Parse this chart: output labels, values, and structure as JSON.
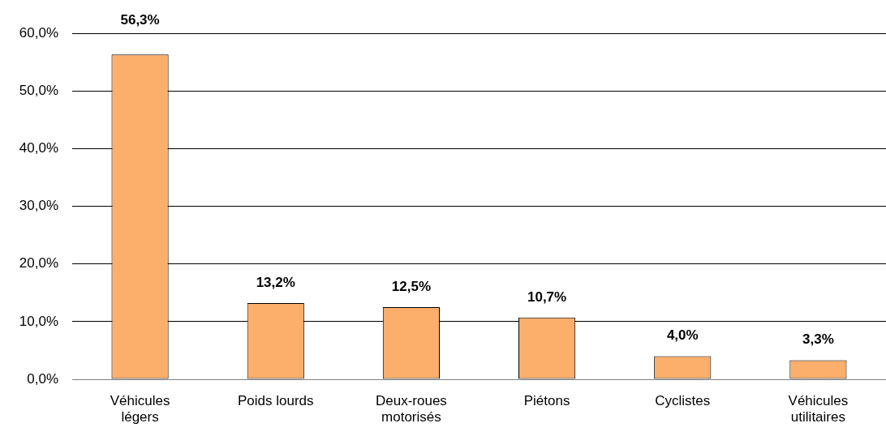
{
  "chart_data": {
    "type": "bar",
    "categories": [
      "Véhicules légers",
      "Poids lourds",
      "Deux-roues motorisés",
      "Piétons",
      "Cyclistes",
      "Véhicules utilitaires"
    ],
    "values": [
      56.3,
      13.2,
      12.5,
      10.7,
      4.0,
      3.3
    ],
    "value_labels": [
      "56,3%",
      "13,2%",
      "12,5%",
      "10,7%",
      "4,0%",
      "3,3%"
    ],
    "color": "#fcae6b",
    "ylim": [
      0,
      60
    ],
    "yticks": [
      {
        "value": 0,
        "label": "0,0%"
      },
      {
        "value": 10,
        "label": "10,0%"
      },
      {
        "value": 20,
        "label": "20,0%"
      },
      {
        "value": 30,
        "label": "30,0%"
      },
      {
        "value": 40,
        "label": "40,0%"
      },
      {
        "value": 50,
        "label": "50,0%"
      },
      {
        "value": 60,
        "label": "60,0%"
      }
    ],
    "grid": "y",
    "legend": false
  }
}
